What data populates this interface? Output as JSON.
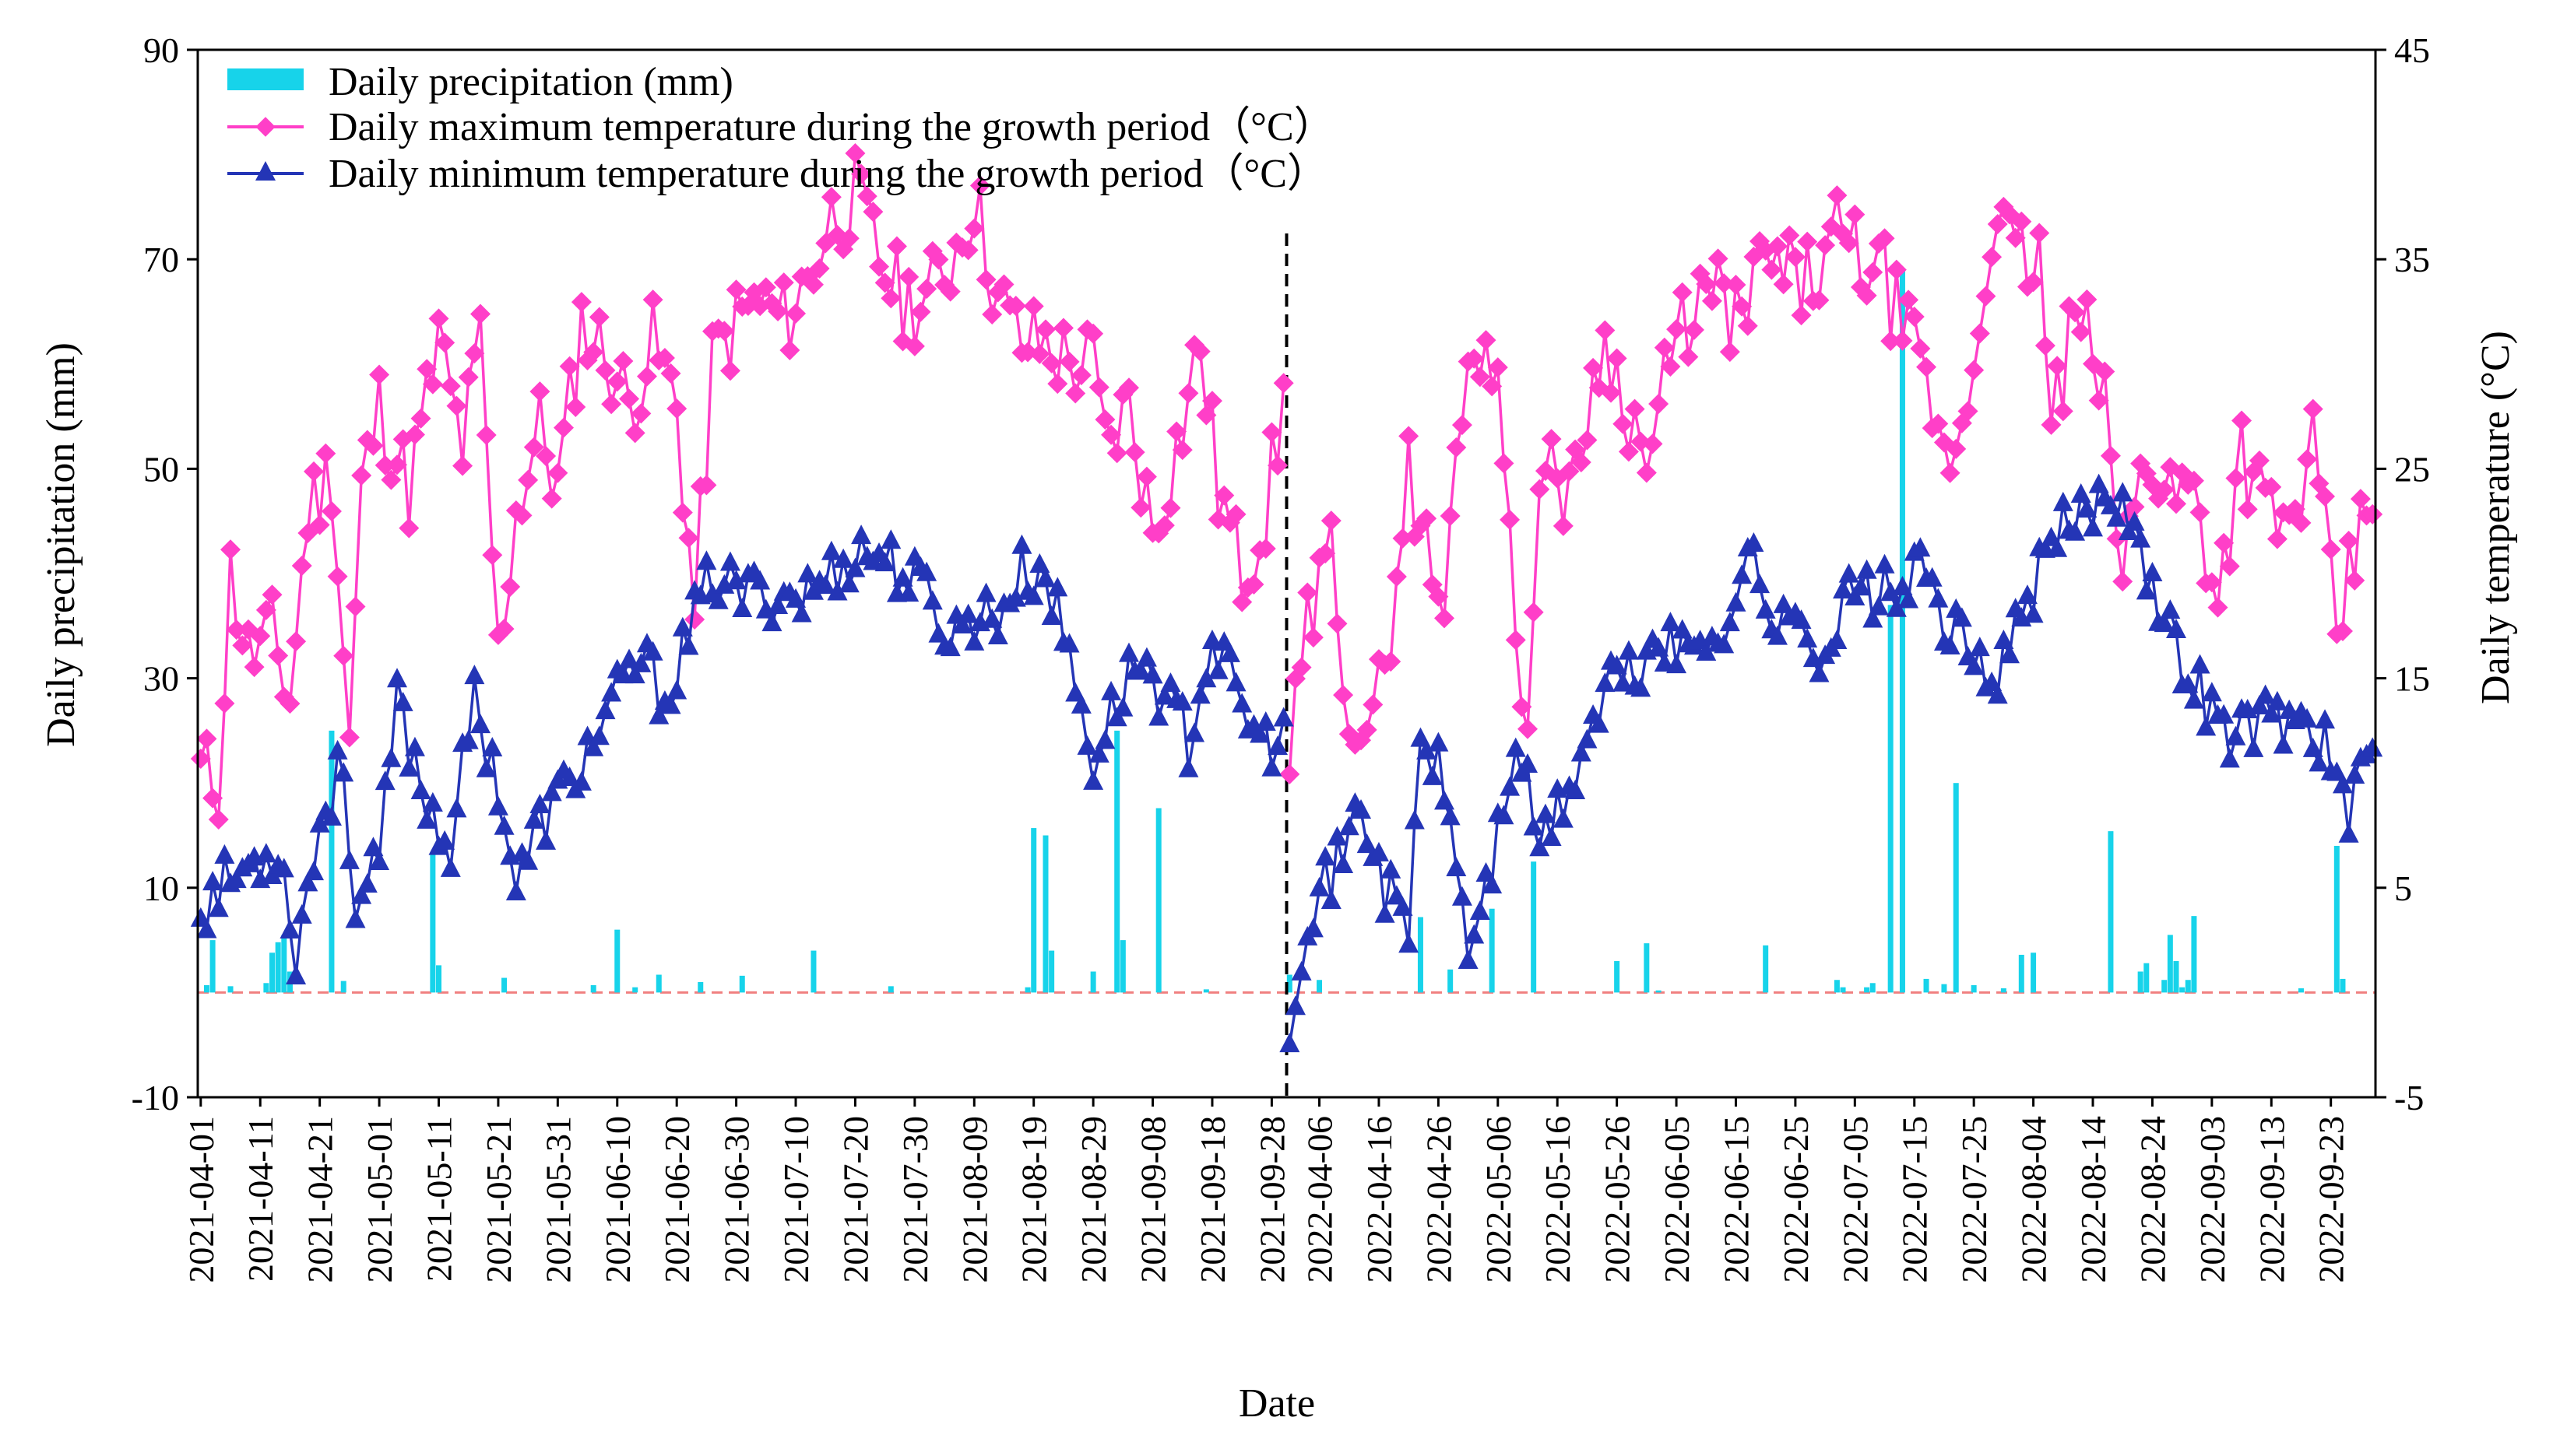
{
  "chart_data": {
    "type": "bar+line",
    "title": "",
    "xlabel": "Date",
    "ylabel_left": "Daily  precipitation (mm)",
    "ylabel_right": "Daily  temperature (°C)",
    "ylim_left": [
      -10,
      90
    ],
    "ylim_right": [
      -5,
      45
    ],
    "yticks_left": [
      "90",
      "70",
      "50",
      "30",
      "10",
      "-10"
    ],
    "yticks_right": [
      "45",
      "35",
      "25",
      "15",
      "5",
      "-5"
    ],
    "x_tick_labels": [
      "2021-04-01",
      "2021-04-11",
      "2021-04-21",
      "2021-05-01",
      "2021-05-11",
      "2021-05-21",
      "2021-05-31",
      "2021-06-10",
      "2021-06-20",
      "2021-06-30",
      "2021-07-10",
      "2021-07-20",
      "2021-07-30",
      "2021-08-09",
      "2021-08-19",
      "2021-08-29",
      "2021-09-08",
      "2021-09-18",
      "2021-09-28",
      "2022-04-06",
      "2022-04-16",
      "2022-04-26",
      "2022-05-06",
      "2022-05-16",
      "2022-05-26",
      "2022-06-05",
      "2022-06-15",
      "2022-06-25",
      "2022-07-05",
      "2022-07-15",
      "2022-07-25",
      "2022-08-04",
      "2022-08-14",
      "2022-08-24",
      "2022-09-03",
      "2022-09-13",
      "2022-09-23"
    ],
    "legend": {
      "placement": "top-left",
      "precip": "Daily  precipitation (mm)",
      "tmax": "Daily maximum temperature during the growth period（°C）",
      "tmin": "Daily minimum temperature during the growth period（°C）"
    },
    "colors": {
      "precip": "#17d3ea",
      "tmax": "#ff3fc8",
      "tmin": "#2435b6",
      "zero_line": "#f08080",
      "separator": "#000000"
    },
    "days_per_season": 183,
    "series": [
      {
        "name": "Daily maximum temperature (°C)",
        "axis": "right",
        "keypoints": [
          [
            [
              0,
              10.5
            ],
            [
              3,
              10
            ],
            [
              5,
              20
            ],
            [
              8,
              16
            ],
            [
              12,
              17
            ],
            [
              15,
              14
            ],
            [
              18,
              23
            ],
            [
              22,
              25
            ],
            [
              25,
              12
            ],
            [
              27,
              24
            ],
            [
              30,
              28
            ],
            [
              35,
              24
            ],
            [
              40,
              31
            ],
            [
              44,
              26
            ],
            [
              47,
              31
            ],
            [
              50,
              16
            ],
            [
              53,
              23
            ],
            [
              57,
              27
            ],
            [
              60,
              24
            ],
            [
              64,
              32
            ],
            [
              69,
              30
            ],
            [
              72,
              28
            ],
            [
              76,
              31
            ],
            [
              80,
              28
            ],
            [
              83,
              18
            ],
            [
              86,
              30
            ],
            [
              90,
              32
            ],
            [
              94,
              33
            ],
            [
              98,
              32
            ],
            [
              102,
              34
            ],
            [
              106,
              37
            ],
            [
              110,
              38
            ],
            [
              114,
              35
            ],
            [
              118,
              33
            ],
            [
              122,
              33
            ],
            [
              126,
              35
            ],
            [
              130,
              38
            ],
            [
              134,
              33
            ],
            [
              138,
              31
            ],
            [
              142,
              31
            ],
            [
              146,
              30
            ],
            [
              150,
              30
            ],
            [
              152,
              26
            ],
            [
              156,
              28
            ],
            [
              160,
              22
            ],
            [
              164,
              26
            ],
            [
              168,
              31
            ],
            [
              171,
              24
            ],
            [
              175,
              20
            ],
            [
              179,
              23
            ],
            [
              182,
              28
            ]
          ],
          [
            [
              0,
              11
            ],
            [
              3,
              17
            ],
            [
              7,
              21
            ],
            [
              10,
              14
            ],
            [
              14,
              12
            ],
            [
              17,
              18
            ],
            [
              20,
              25
            ],
            [
              23,
              21
            ],
            [
              26,
              18
            ],
            [
              29,
              29
            ],
            [
              33,
              32
            ],
            [
              36,
              26
            ],
            [
              40,
              12
            ],
            [
              43,
              27
            ],
            [
              47,
              23
            ],
            [
              52,
              31
            ],
            [
              56,
              29
            ],
            [
              60,
              25
            ],
            [
              64,
              30
            ],
            [
              68,
              33
            ],
            [
              72,
              33
            ],
            [
              76,
              32
            ],
            [
              80,
              35
            ],
            [
              84,
              34
            ],
            [
              88,
              34
            ],
            [
              92,
              36
            ],
            [
              96,
              35
            ],
            [
              100,
              34
            ],
            [
              104,
              31
            ],
            [
              108,
              28
            ],
            [
              110,
              25
            ],
            [
              114,
              28
            ],
            [
              118,
              37
            ],
            [
              122,
              35
            ],
            [
              126,
              35
            ],
            [
              128,
              27
            ],
            [
              132,
              32
            ],
            [
              136,
              30
            ],
            [
              140,
              20
            ],
            [
              144,
              26
            ],
            [
              148,
              24
            ],
            [
              152,
              24
            ],
            [
              156,
              19
            ],
            [
              160,
              26
            ],
            [
              164,
              23
            ],
            [
              168,
              22
            ],
            [
              172,
              26
            ],
            [
              176,
              17
            ],
            [
              180,
              22
            ],
            [
              182,
              24
            ]
          ]
        ]
      },
      {
        "name": "Daily minimum temperature (°C)",
        "axis": "right",
        "keypoints": [
          [
            [
              0,
              4
            ],
            [
              3,
              5
            ],
            [
              8,
              6
            ],
            [
              13,
              7
            ],
            [
              16,
              2
            ],
            [
              20,
              8
            ],
            [
              24,
              11
            ],
            [
              26,
              4
            ],
            [
              30,
              6
            ],
            [
              33,
              14
            ],
            [
              38,
              9
            ],
            [
              42,
              7
            ],
            [
              46,
              14
            ],
            [
              50,
              10
            ],
            [
              53,
              5
            ],
            [
              57,
              8
            ],
            [
              62,
              10
            ],
            [
              66,
              12
            ],
            [
              70,
              14
            ],
            [
              74,
              16
            ],
            [
              78,
              14
            ],
            [
              82,
              17
            ],
            [
              86,
              20
            ],
            [
              90,
              19
            ],
            [
              94,
              19
            ],
            [
              98,
              19
            ],
            [
              102,
              19
            ],
            [
              106,
              20
            ],
            [
              110,
              21
            ],
            [
              114,
              21
            ],
            [
              118,
              20
            ],
            [
              122,
              19
            ],
            [
              126,
              17
            ],
            [
              130,
              18
            ],
            [
              134,
              18
            ],
            [
              138,
              20
            ],
            [
              142,
              20
            ],
            [
              146,
              16
            ],
            [
              150,
              11
            ],
            [
              154,
              14
            ],
            [
              158,
              16
            ],
            [
              162,
              14
            ],
            [
              166,
              12
            ],
            [
              170,
              17
            ],
            [
              174,
              14
            ],
            [
              178,
              12
            ],
            [
              182,
              12
            ]
          ],
          [
            [
              0,
              -1.2
            ],
            [
              3,
              4
            ],
            [
              8,
              6
            ],
            [
              12,
              9
            ],
            [
              16,
              5
            ],
            [
              20,
              3
            ],
            [
              22,
              12
            ],
            [
              26,
              10
            ],
            [
              30,
              2
            ],
            [
              34,
              6
            ],
            [
              38,
              12
            ],
            [
              42,
              7
            ],
            [
              46,
              9
            ],
            [
              50,
              12
            ],
            [
              54,
              15
            ],
            [
              58,
              15
            ],
            [
              62,
              17
            ],
            [
              66,
              16
            ],
            [
              70,
              17
            ],
            [
              74,
              18
            ],
            [
              78,
              21
            ],
            [
              82,
              17
            ],
            [
              86,
              18
            ],
            [
              90,
              16
            ],
            [
              94,
              19
            ],
            [
              98,
              19
            ],
            [
              102,
              19
            ],
            [
              106,
              20
            ],
            [
              110,
              18
            ],
            [
              114,
              16
            ],
            [
              118,
              15
            ],
            [
              122,
              17
            ],
            [
              126,
              20
            ],
            [
              130,
              22
            ],
            [
              134,
              23
            ],
            [
              138,
              24
            ],
            [
              142,
              23
            ],
            [
              146,
              18
            ],
            [
              150,
              16
            ],
            [
              154,
              14
            ],
            [
              158,
              12
            ],
            [
              162,
              13
            ],
            [
              166,
              13
            ],
            [
              170,
              13
            ],
            [
              174,
              12
            ],
            [
              178,
              8
            ],
            [
              182,
              12
            ]
          ]
        ]
      },
      {
        "name": "Daily precipitation (mm)",
        "axis": "left",
        "events": [
          [
            [
              1,
              0.7
            ],
            [
              2,
              5
            ],
            [
              5,
              0.6
            ],
            [
              11,
              0.9
            ],
            [
              12,
              3.8
            ],
            [
              13,
              4.8
            ],
            [
              14,
              5.5
            ],
            [
              15,
              2
            ],
            [
              22,
              25
            ],
            [
              24,
              1.1
            ],
            [
              39,
              13.2
            ],
            [
              40,
              2.6
            ],
            [
              51,
              1.4
            ],
            [
              66,
              0.7
            ],
            [
              70,
              6
            ],
            [
              73,
              0.5
            ],
            [
              77,
              1.7
            ],
            [
              84,
              1
            ],
            [
              91,
              1.6
            ],
            [
              103,
              4
            ],
            [
              116,
              0.6
            ],
            [
              139,
              0.5
            ],
            [
              140,
              15.7
            ],
            [
              142,
              15
            ],
            [
              143,
              4
            ],
            [
              150,
              2
            ],
            [
              154,
              25
            ],
            [
              155,
              5
            ],
            [
              161,
              17.6
            ],
            [
              169,
              0.3
            ]
          ],
          [
            [
              0,
              1.7
            ],
            [
              5,
              1.2
            ],
            [
              22,
              7.2
            ],
            [
              27,
              2.2
            ],
            [
              34,
              8
            ],
            [
              41,
              12.5
            ],
            [
              55,
              3
            ],
            [
              60,
              4.7
            ],
            [
              62,
              0.2
            ],
            [
              80,
              4.5
            ],
            [
              92,
              1.2
            ],
            [
              93,
              0.5
            ],
            [
              97,
              0.5
            ],
            [
              98,
              0.9
            ],
            [
              101,
              37
            ],
            [
              103,
              69
            ],
            [
              107,
              1.3
            ],
            [
              110,
              0.8
            ],
            [
              112,
              20
            ],
            [
              115,
              0.7
            ],
            [
              120,
              0.4
            ],
            [
              123,
              3.6
            ],
            [
              125,
              3.8
            ],
            [
              138,
              15.4
            ],
            [
              143,
              2
            ],
            [
              144,
              2.8
            ],
            [
              147,
              1.2
            ],
            [
              148,
              5.5
            ],
            [
              149,
              3
            ],
            [
              150,
              0.5
            ],
            [
              151,
              1.2
            ],
            [
              152,
              7.3
            ],
            [
              170,
              0.4
            ],
            [
              176,
              14
            ],
            [
              177,
              1.3
            ]
          ]
        ]
      }
    ]
  }
}
